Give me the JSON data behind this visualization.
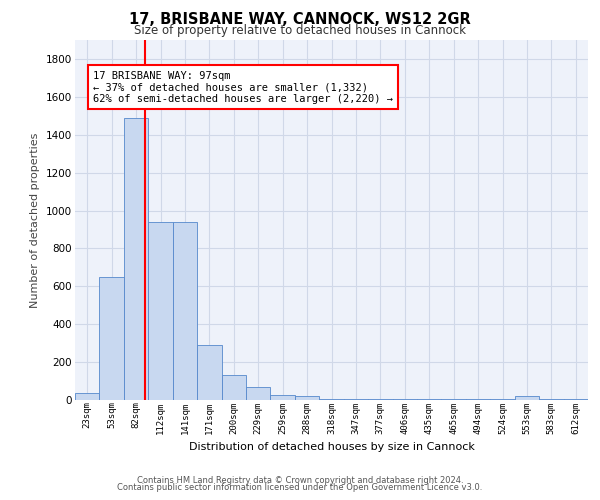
{
  "title": "17, BRISBANE WAY, CANNOCK, WS12 2GR",
  "subtitle": "Size of property relative to detached houses in Cannock",
  "xlabel": "Distribution of detached houses by size in Cannock",
  "ylabel": "Number of detached properties",
  "bar_categories": [
    "23sqm",
    "53sqm",
    "82sqm",
    "112sqm",
    "141sqm",
    "171sqm",
    "200sqm",
    "229sqm",
    "259sqm",
    "288sqm",
    "318sqm",
    "347sqm",
    "377sqm",
    "406sqm",
    "435sqm",
    "465sqm",
    "494sqm",
    "524sqm",
    "553sqm",
    "583sqm",
    "612sqm"
  ],
  "bar_heights": [
    35,
    650,
    1490,
    940,
    940,
    290,
    130,
    70,
    25,
    20,
    5,
    5,
    5,
    5,
    5,
    5,
    5,
    5,
    20,
    5,
    5
  ],
  "bar_color": "#c8d8f0",
  "bar_edge_color": "#5588cc",
  "grid_color": "#d0d8e8",
  "background_color": "#eef2fa",
  "annotation_box_text": "17 BRISBANE WAY: 97sqm\n← 37% of detached houses are smaller (1,332)\n62% of semi-detached houses are larger (2,220) →",
  "annotation_box_color": "white",
  "annotation_box_edge_color": "red",
  "vline_color": "red",
  "vline_x": 2.35,
  "ylim": [
    0,
    1900
  ],
  "yticks": [
    0,
    200,
    400,
    600,
    800,
    1000,
    1200,
    1400,
    1600,
    1800
  ],
  "footer_line1": "Contains HM Land Registry data © Crown copyright and database right 2024.",
  "footer_line2": "Contains public sector information licensed under the Open Government Licence v3.0."
}
